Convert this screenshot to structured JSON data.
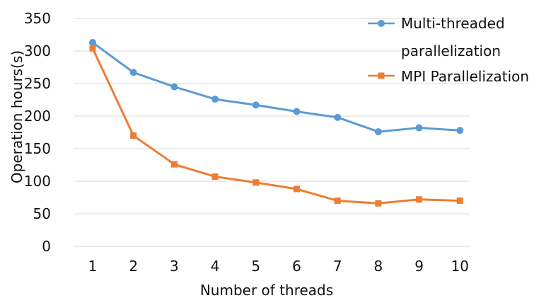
{
  "chart_data": {
    "type": "line",
    "title": "",
    "xlabel": "Number of threads",
    "ylabel": "Operation hours(s)",
    "x": [
      1,
      2,
      3,
      4,
      5,
      6,
      7,
      8,
      9,
      10
    ],
    "x_tick_labels": [
      "1",
      "2",
      "3",
      "4",
      "5",
      "6",
      "7",
      "8",
      "9",
      "10"
    ],
    "ylim": [
      0,
      350
    ],
    "y_ticks": [
      0,
      50,
      100,
      150,
      200,
      250,
      300,
      350
    ],
    "y_tick_labels": [
      "0",
      "50",
      "100",
      "150",
      "200",
      "250",
      "300",
      "350"
    ],
    "grid": true,
    "legend_position": "top-right",
    "series": [
      {
        "name": "Multi-threaded parallelization",
        "legend_lines": [
          "Multi-threaded",
          "parallelization"
        ],
        "marker": "circle",
        "color": "#5b9bd5",
        "values": [
          313,
          267,
          245,
          226,
          217,
          207,
          198,
          176,
          182,
          178
        ]
      },
      {
        "name": "MPI Parallelization",
        "legend_lines": [
          "MPI Parallelization"
        ],
        "marker": "square",
        "color": "#ed7d31",
        "values": [
          304,
          170,
          126,
          107,
          98,
          88,
          70,
          66,
          72,
          70
        ]
      }
    ]
  }
}
